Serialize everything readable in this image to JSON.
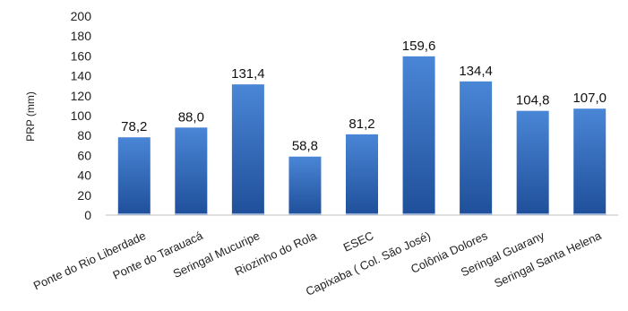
{
  "chart_data": {
    "type": "bar",
    "ylabel": "PRP (mm)",
    "ylim": [
      0,
      200
    ],
    "yticks": [
      0,
      20,
      40,
      60,
      80,
      100,
      120,
      140,
      160,
      180,
      200
    ],
    "grid": false,
    "categories": [
      "Ponte do Rio Liberdade",
      "Ponte do Tarauacá",
      "Seringal Mucuripe",
      "Riozinho do Rola",
      "ESEC",
      "Capixaba ( Col. São José)",
      "Colônia Dolores",
      "Seringal Guarany",
      "Seringal Santa Helena"
    ],
    "values": [
      78.2,
      88.0,
      131.4,
      58.8,
      81.2,
      159.6,
      134.4,
      104.8,
      107.0
    ],
    "value_labels": [
      "78,2",
      "88,0",
      "131,4",
      "58,8",
      "81,2",
      "159,6",
      "134,4",
      "104,8",
      "107,0"
    ],
    "colors": {
      "bar_top": "#4a86d6",
      "bar_bottom": "#1f4f9a",
      "axis": "#bfbfbf"
    }
  }
}
